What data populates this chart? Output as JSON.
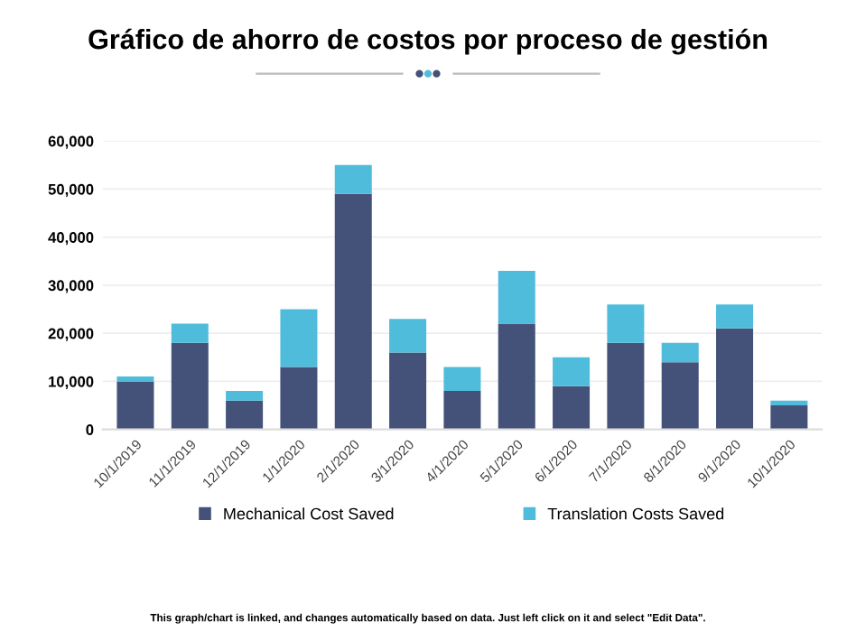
{
  "chart_data": {
    "type": "bar",
    "title": "Gráfico de ahorro de costos por proceso de gestión",
    "categories": [
      "10/1/2019",
      "11/1/2019",
      "12/1/2019",
      "1/1/2020",
      "2/1/2020",
      "3/1/2020",
      "4/1/2020",
      "5/1/2020",
      "6/1/2020",
      "7/1/2020",
      "8/1/2020",
      "9/1/2020",
      "10/1/2020"
    ],
    "series": [
      {
        "name": "Mechanical Cost Saved",
        "color": "#44527a",
        "values": [
          10000,
          18000,
          6000,
          13000,
          49000,
          16000,
          8000,
          22000,
          9000,
          18000,
          14000,
          21000,
          5000
        ]
      },
      {
        "name": "Translation Costs Saved",
        "color": "#4fbcdc",
        "values": [
          1000,
          4000,
          2000,
          12000,
          6000,
          7000,
          5000,
          11000,
          6000,
          8000,
          4000,
          5000,
          1000
        ]
      }
    ],
    "stacked": true,
    "ylim": [
      0,
      60000
    ],
    "yticks": [
      {
        "value": 0,
        "label": "0"
      },
      {
        "value": 10000,
        "label": "10,000"
      },
      {
        "value": 20000,
        "label": "20,000"
      },
      {
        "value": 30000,
        "label": "30,000"
      },
      {
        "value": 40000,
        "label": "40,000"
      },
      {
        "value": 50000,
        "label": "50,000"
      },
      {
        "value": 60000,
        "label": "60,000"
      }
    ],
    "grid": "y",
    "legend": "bottom",
    "annotations": [
      "This graph/chart is linked, and changes automatically based on data. Just left click on it and select \"Edit Data\"."
    ]
  }
}
